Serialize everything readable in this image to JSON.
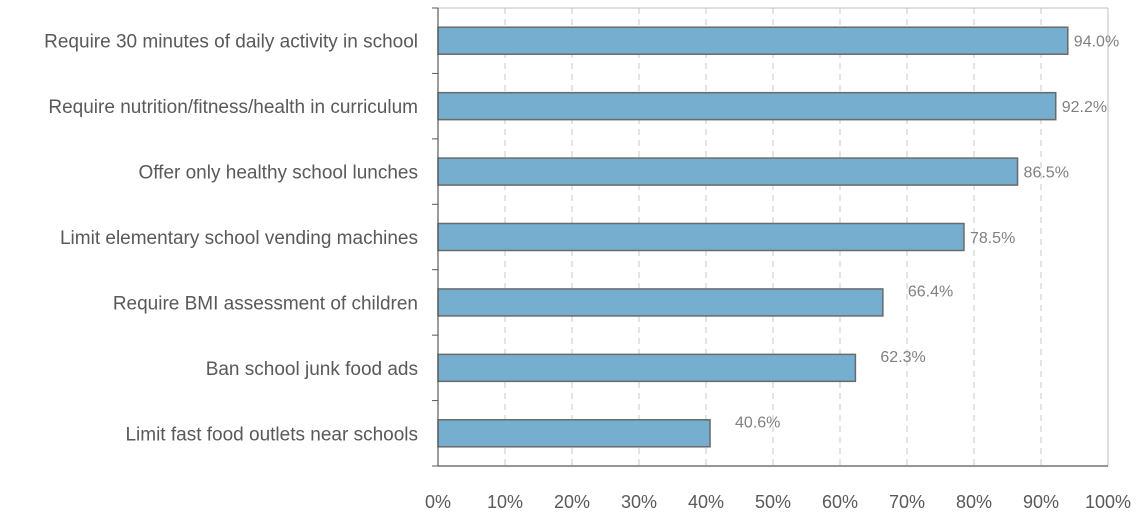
{
  "chart_data": {
    "type": "bar",
    "orientation": "horizontal",
    "categories": [
      "Require 30 minutes of daily activity in school",
      "Require nutrition/fitness/health in curriculum",
      "Offer only healthy school lunches",
      "Limit elementary school vending machines",
      "Require BMI assessment of children",
      "Ban school junk food ads",
      "Limit fast food outlets near schools"
    ],
    "values": [
      94.0,
      92.2,
      86.5,
      78.5,
      66.4,
      62.3,
      40.6
    ],
    "data_labels": [
      "94.0%",
      "92.2%",
      "86.5%",
      "78.5%",
      "66.4%",
      "62.3%",
      "40.6%"
    ],
    "x_ticks": [
      "0%",
      "10%",
      "20%",
      "30%",
      "40%",
      "50%",
      "60%",
      "70%",
      "80%",
      "90%",
      "100%"
    ],
    "xlim": [
      0,
      100
    ],
    "grid": "vertical dashed",
    "bar_color": "#75AECE",
    "bar_edge_color": "#6A6A6A",
    "legend": "none"
  }
}
